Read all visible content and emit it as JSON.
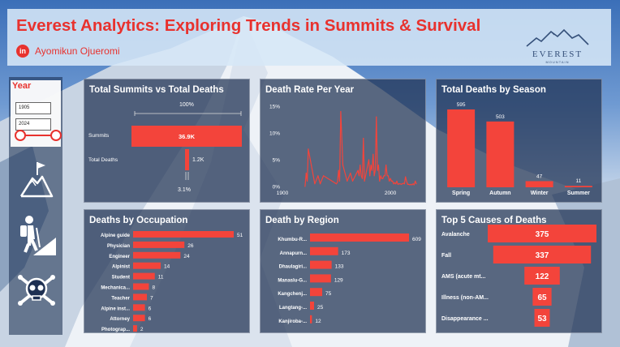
{
  "header": {
    "title": "Everest Analytics: Exploring Trends in Summits & Survival",
    "author": "Ayomikun Ojueromi",
    "linkedin_badge": "in",
    "logo_word": "EVEREST",
    "logo_sub": "MOUNTAIN"
  },
  "slicer": {
    "title": "Year",
    "start": "1905",
    "end": "2024"
  },
  "sidebar_icons": [
    "mountain-flag-icon",
    "hiker-icon",
    "skull-crossbones-icon"
  ],
  "colors": {
    "accent": "#e8322e",
    "bar": "#f3443b",
    "panel": "#1e3052"
  },
  "summits_vs_deaths": {
    "title": "Total Summits vs Total Deaths",
    "top_pct": "100%",
    "bottom_pct": "3.1%",
    "rows": [
      {
        "label": "Summits",
        "value_text": "36.9K",
        "value": 36900
      },
      {
        "label": "Total Deaths",
        "value_text": "1.2K",
        "value": 1150
      }
    ]
  },
  "death_rate": {
    "title": "Death Rate Per Year"
  },
  "season": {
    "title": "Total Deaths by Season"
  },
  "occupation": {
    "title": "Deaths by Occupation"
  },
  "region": {
    "title": "Death by Region"
  },
  "causes": {
    "title": "Top 5 Causes of Deaths"
  },
  "chart_data": [
    {
      "type": "line",
      "title": "Death Rate Per Year",
      "x_ticks": [
        "1900",
        "2000"
      ],
      "y_ticks": [
        "0%",
        "5%",
        "10%",
        "15%"
      ],
      "ylim": [
        0,
        15
      ],
      "xlim": [
        1900,
        2024
      ],
      "x": [
        1921,
        1922,
        1923,
        1924,
        1930,
        1933,
        1935,
        1936,
        1938,
        1950,
        1951,
        1952,
        1953,
        1954,
        1956,
        1960,
        1962,
        1963,
        1965,
        1970,
        1971,
        1972,
        1973,
        1974,
        1975,
        1976,
        1977,
        1978,
        1979,
        1980,
        1981,
        1982,
        1983,
        1984,
        1985,
        1986,
        1987,
        1988,
        1989,
        1990,
        1991,
        1992,
        1993,
        1994,
        1995,
        1996,
        1997,
        1998,
        1999,
        2000,
        2001,
        2002,
        2003,
        2004,
        2005,
        2006,
        2007,
        2008,
        2009,
        2010,
        2011,
        2012,
        2013,
        2014,
        2015,
        2016,
        2017,
        2018,
        2019,
        2020,
        2021,
        2022,
        2023,
        2024
      ],
      "y": [
        0,
        2.5,
        1,
        7,
        0.5,
        2,
        0.5,
        1,
        2,
        0.5,
        0.8,
        3,
        1,
        14,
        4,
        1,
        2,
        2.5,
        1,
        3,
        2,
        4,
        2,
        1.5,
        9,
        1,
        2,
        3,
        4,
        5,
        2,
        4,
        3,
        6,
        2,
        3,
        13,
        3,
        4,
        1,
        2,
        1.5,
        1.5,
        2,
        2,
        4,
        2,
        2,
        1,
        1.5,
        1,
        1,
        0.5,
        0.7,
        0.5,
        1,
        0.4,
        0.5,
        0.5,
        0.4,
        0.5,
        0.6,
        0.5,
        1.8,
        1,
        0.4,
        0.4,
        0.3,
        0.4,
        0.3,
        0.5,
        0.3,
        1,
        0.5
      ]
    },
    {
      "type": "bar",
      "title": "Total Deaths by Season",
      "categories": [
        "Spring",
        "Autumn",
        "Winter",
        "Summer"
      ],
      "values": [
        595,
        503,
        47,
        11
      ]
    },
    {
      "type": "bar",
      "title": "Deaths by Occupation",
      "categories": [
        "Alpine guide",
        "Physician",
        "Engineer",
        "Alpinist",
        "Student",
        "Mechanica...",
        "Teacher",
        "Alpine inst...",
        "Attorney",
        "Photograp..."
      ],
      "values": [
        51,
        26,
        24,
        14,
        11,
        8,
        7,
        6,
        6,
        2
      ]
    },
    {
      "type": "bar",
      "title": "Death by Region",
      "categories": [
        "Khumbu-R...",
        "Annapurn...",
        "Dhaulagiri...",
        "Manaslu-G...",
        "Kangchenj...",
        "Langtang-...",
        "Kanjiroba-..."
      ],
      "values": [
        609,
        173,
        133,
        129,
        75,
        25,
        12
      ]
    },
    {
      "type": "bar",
      "title": "Top 5 Causes of Deaths",
      "categories": [
        "Avalanche",
        "Fall",
        "AMS (acute mt...",
        "Illness (non-AM...",
        "Disappearance ..."
      ],
      "values": [
        375,
        337,
        122,
        65,
        53
      ]
    }
  ]
}
